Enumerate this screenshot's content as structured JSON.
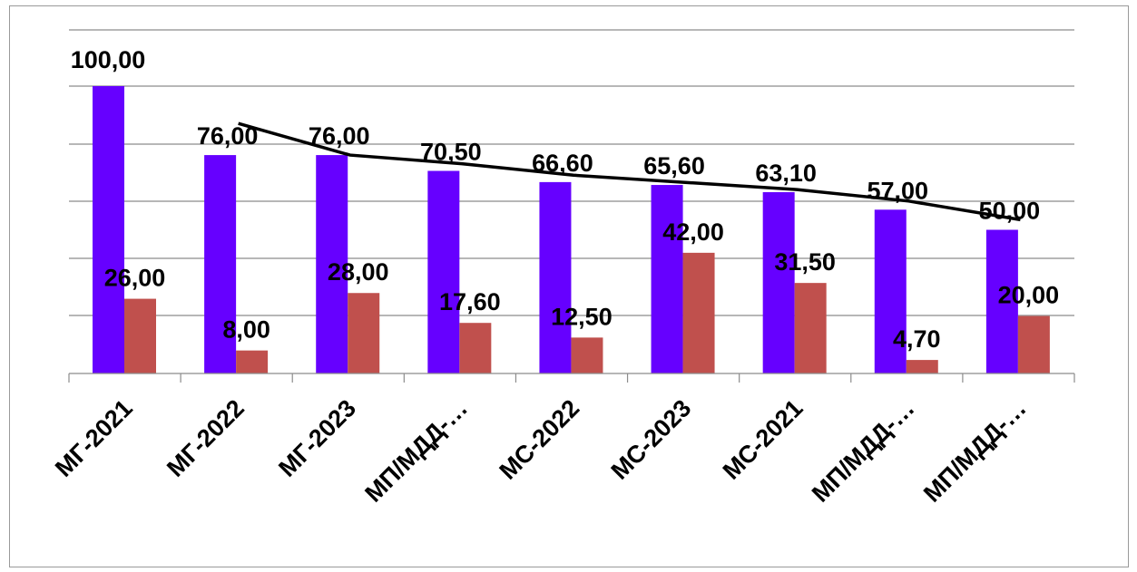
{
  "chart_data": {
    "type": "bar",
    "categories": [
      "МГ-2021",
      "МГ-2022",
      "МГ-2023",
      "МП/МДД-…",
      "МС-2022",
      "МС-2023",
      "МС-2021",
      "МП/МДД-…",
      "МП/МДД-…"
    ],
    "series": [
      {
        "type": "bar",
        "color": "#6600ff",
        "values": [
          100.0,
          76.0,
          76.0,
          70.5,
          66.6,
          65.6,
          63.1,
          57.0,
          50.0
        ]
      },
      {
        "type": "bar",
        "color": "#c0504d",
        "values": [
          26.0,
          8.0,
          28.0,
          17.6,
          12.5,
          42.0,
          31.5,
          4.7,
          20.0
        ]
      },
      {
        "type": "line",
        "color": "#000000",
        "values": [
          null,
          87.0,
          76.0,
          73.0,
          69.0,
          66.5,
          64.0,
          60.0,
          53.5
        ]
      }
    ],
    "bar_labels": [
      [
        "100,00",
        "76,00",
        "76,00",
        "70,50",
        "66,60",
        "65,60",
        "63,10",
        "57,00",
        "50,00"
      ],
      [
        "26,00",
        "8,00",
        "28,00",
        "17,60",
        "12,50",
        "42,00",
        "31,50",
        "4,70",
        "20,00"
      ]
    ],
    "ylim": [
      0,
      100
    ],
    "grid": true,
    "title": "",
    "xlabel": "",
    "ylabel": ""
  }
}
